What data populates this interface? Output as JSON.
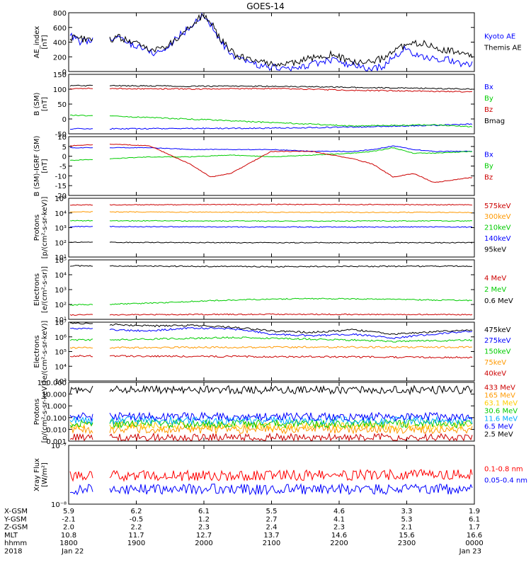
{
  "title": "GOES-14",
  "chart_data": [
    {
      "type": "line",
      "ylabel": [
        "AE_index",
        "[nT]"
      ],
      "yscale": "linear",
      "ylim": [
        0,
        800
      ],
      "yticks": [
        "0",
        "200",
        "400",
        "600",
        "800"
      ],
      "series": [
        {
          "name": "Kyoto AE",
          "color": "#0000ff",
          "x": [
            0,
            0.03,
            0.06,
            0.09,
            0.12,
            0.15,
            0.18,
            0.21,
            0.24,
            0.27,
            0.3,
            0.33,
            0.34,
            0.35,
            0.37,
            0.39,
            0.41,
            0.44,
            0.47,
            0.5,
            0.53,
            0.56,
            0.59,
            0.62,
            0.65,
            0.68,
            0.71,
            0.74,
            0.77,
            0.8,
            0.83,
            0.86,
            0.89,
            0.92,
            0.95,
            0.98,
            1.0
          ],
          "y": [
            500,
            400,
            430,
            380,
            470,
            380,
            330,
            250,
            300,
            480,
            600,
            780,
            700,
            650,
            430,
            300,
            170,
            150,
            80,
            60,
            40,
            30,
            90,
            120,
            170,
            90,
            80,
            20,
            60,
            180,
            320,
            200,
            170,
            180,
            140,
            90,
            110
          ]
        },
        {
          "name": "Themis AE",
          "color": "#000000",
          "x": [
            0,
            0.03,
            0.06,
            0.09,
            0.12,
            0.15,
            0.18,
            0.21,
            0.24,
            0.27,
            0.3,
            0.33,
            0.34,
            0.35,
            0.37,
            0.39,
            0.41,
            0.44,
            0.47,
            0.5,
            0.53,
            0.56,
            0.59,
            0.62,
            0.65,
            0.68,
            0.71,
            0.74,
            0.77,
            0.8,
            0.83,
            0.86,
            0.89,
            0.92,
            0.95,
            0.98,
            1.0
          ],
          "y": [
            470,
            440,
            450,
            400,
            470,
            410,
            350,
            300,
            330,
            470,
            620,
            760,
            720,
            680,
            470,
            340,
            220,
            180,
            130,
            110,
            100,
            120,
            170,
            210,
            230,
            170,
            120,
            120,
            170,
            280,
            350,
            380,
            370,
            300,
            270,
            230,
            200
          ]
        }
      ]
    },
    {
      "type": "line",
      "ylabel": [
        "B (SM)",
        "[nT]"
      ],
      "yscale": "linear",
      "ylim": [
        -60,
        150
      ],
      "yticks": [
        "-50",
        "0",
        "50",
        "100",
        "150"
      ],
      "series": [
        {
          "name": "Bx",
          "color": "#0000ff",
          "x": [
            0,
            0.1,
            0.3,
            0.5,
            0.7,
            0.9,
            1.0
          ],
          "y": [
            -42,
            -42,
            -41,
            -40,
            -36,
            -30,
            -25
          ]
        },
        {
          "name": "By",
          "color": "#00cc00",
          "x": [
            0,
            0.1,
            0.3,
            0.5,
            0.7,
            0.9,
            1.0
          ],
          "y": [
            5,
            3,
            -8,
            -20,
            -32,
            -28,
            -35
          ]
        },
        {
          "name": "Bz",
          "color": "#cc0000",
          "x": [
            0,
            0.1,
            0.3,
            0.5,
            0.7,
            0.9,
            1.0
          ],
          "y": [
            100,
            100,
            98,
            100,
            94,
            90,
            88
          ]
        },
        {
          "name": "Bmag",
          "color": "#000000",
          "x": [
            0,
            0.1,
            0.3,
            0.5,
            0.7,
            0.9,
            1.0
          ],
          "y": [
            110,
            110,
            108,
            108,
            104,
            100,
            98
          ]
        }
      ]
    },
    {
      "type": "line",
      "ylabel": [
        "B (SM)-IGRF (SM)",
        "[nT]"
      ],
      "yscale": "linear",
      "ylim": [
        -22,
        10
      ],
      "yticks": [
        "-20",
        "-15",
        "-10",
        "-5",
        "0",
        "5",
        "10"
      ],
      "series": [
        {
          "name": "Bx",
          "color": "#0000ff",
          "x": [
            0,
            0.1,
            0.2,
            0.3,
            0.4,
            0.5,
            0.6,
            0.7,
            0.75,
            0.8,
            0.85,
            0.9,
            1.0
          ],
          "y": [
            4,
            4,
            4,
            3,
            3,
            3,
            2,
            2,
            3,
            5,
            3,
            2,
            2
          ]
        },
        {
          "name": "By",
          "color": "#00cc00",
          "x": [
            0,
            0.1,
            0.2,
            0.3,
            0.4,
            0.5,
            0.6,
            0.7,
            0.75,
            0.8,
            0.85,
            0.9,
            1.0
          ],
          "y": [
            -3,
            -2,
            -1,
            -1,
            0,
            -1,
            0,
            1,
            2,
            4,
            1,
            1,
            2
          ]
        },
        {
          "name": "Bz",
          "color": "#cc0000",
          "x": [
            0,
            0.1,
            0.2,
            0.3,
            0.35,
            0.4,
            0.5,
            0.6,
            0.7,
            0.75,
            0.8,
            0.85,
            0.9,
            1.0
          ],
          "y": [
            5,
            6,
            5,
            -5,
            -12,
            -10,
            2,
            2,
            -2,
            -5,
            -12,
            -10,
            -15,
            -12
          ]
        }
      ]
    },
    {
      "type": "line",
      "ylabel": [
        "Protons",
        "[p/(cm²-s-sr-keV)]"
      ],
      "yscale": "log",
      "ylim": [
        10,
        100000
      ],
      "yticks": [
        "10¹",
        "10²",
        "10³",
        "10⁴",
        "10⁵"
      ],
      "series": [
        {
          "name": "575keV",
          "color": "#cc0000",
          "x": [
            0,
            0.5,
            1
          ],
          "y": [
            35000,
            38000,
            36000
          ]
        },
        {
          "name": "300keV",
          "color": "#ff9900",
          "x": [
            0,
            0.5,
            1
          ],
          "y": [
            12000,
            11000,
            11000
          ]
        },
        {
          "name": "210keV",
          "color": "#00cc00",
          "x": [
            0,
            0.5,
            1
          ],
          "y": [
            3000,
            2800,
            2900
          ]
        },
        {
          "name": "140keV",
          "color": "#0000ff",
          "x": [
            0,
            0.5,
            1
          ],
          "y": [
            1200,
            1100,
            1100
          ]
        },
        {
          "name": "95keV",
          "color": "#000000",
          "x": [
            0,
            0.5,
            1
          ],
          "y": [
            100,
            95,
            95
          ]
        }
      ]
    },
    {
      "type": "line",
      "ylabel": [
        "Electrons",
        "[e/(cm²-s-sr)]"
      ],
      "yscale": "log",
      "ylim": [
        10,
        100000
      ],
      "yticks": [
        "10¹",
        "10²",
        "10³",
        "10⁴",
        "10⁵"
      ],
      "series": [
        {
          "name": "4 MeV",
          "color": "#cc0000",
          "x": [
            0,
            0.5,
            1
          ],
          "y": [
            20,
            22,
            21
          ]
        },
        {
          "name": "2 MeV",
          "color": "#00cc00",
          "x": [
            0,
            0.2,
            0.4,
            0.6,
            0.8,
            1
          ],
          "y": [
            90,
            120,
            200,
            250,
            220,
            180
          ]
        },
        {
          "name": "0.6 MeV",
          "color": "#000000",
          "x": [
            0,
            0.5,
            1
          ],
          "y": [
            40000,
            35000,
            38000
          ]
        }
      ]
    },
    {
      "type": "line",
      "ylabel": [
        "Electrons",
        "[e/(cm²-s-sr-keV)]"
      ],
      "yscale": "log",
      "ylim": [
        1000,
        10000000
      ],
      "yticks": [
        "10³",
        "10⁴",
        "10⁵",
        "10⁶",
        "10⁷"
      ],
      "series": [
        {
          "name": "475keV",
          "color": "#000000",
          "x": [
            0,
            0.1,
            0.2,
            0.3,
            0.4,
            0.5,
            0.6,
            0.7,
            0.8,
            0.9,
            1
          ],
          "y": [
            9000000,
            7000000,
            5500000,
            6000000,
            4500000,
            2500000,
            2000000,
            3000000,
            1500000,
            2200000,
            3000000
          ]
        },
        {
          "name": "275keV",
          "color": "#0000ff",
          "x": [
            0,
            0.1,
            0.2,
            0.3,
            0.4,
            0.5,
            0.6,
            0.7,
            0.8,
            0.9,
            1
          ],
          "y": [
            4000000,
            3000000,
            2500000,
            4000000,
            3500000,
            1500000,
            1200000,
            1500000,
            800000,
            1500000,
            2500000
          ]
        },
        {
          "name": "150keV",
          "color": "#00cc00",
          "x": [
            0,
            0.2,
            0.4,
            0.6,
            0.8,
            1
          ],
          "y": [
            600000,
            700000,
            900000,
            700000,
            500000,
            600000
          ]
        },
        {
          "name": "75keV",
          "color": "#ff9900",
          "x": [
            0,
            0.5,
            1
          ],
          "y": [
            180000,
            200000,
            200000
          ]
        },
        {
          "name": "40keV",
          "color": "#cc0000",
          "x": [
            0,
            0.5,
            1
          ],
          "y": [
            50000,
            45000,
            40000
          ]
        }
      ]
    },
    {
      "type": "line",
      "ylabel": [
        "Protons",
        "[p/(cm²-s-sr-keV)]"
      ],
      "yscale": "log",
      "ylim": [
        0.001,
        100
      ],
      "yticks": [
        "0.001",
        "0.010",
        "0.100",
        "1.000",
        "10.000",
        "100.000"
      ],
      "series": [
        {
          "name": "433 MeV",
          "color": "#cc0000",
          "x": [
            0,
            1
          ],
          "y": [
            0.002,
            0.002
          ]
        },
        {
          "name": "165 MeV",
          "color": "#ff9900",
          "x": [
            0,
            1
          ],
          "y": [
            0.01,
            0.01
          ]
        },
        {
          "name": "63.1 MeV",
          "color": "#ffcc00",
          "x": [
            0,
            1
          ],
          "y": [
            0.02,
            0.02
          ]
        },
        {
          "name": "30.6 MeV",
          "color": "#00cc00",
          "x": [
            0,
            1
          ],
          "y": [
            0.03,
            0.03
          ]
        },
        {
          "name": "11.6 MeV",
          "color": "#00aaff",
          "x": [
            0,
            1
          ],
          "y": [
            0.06,
            0.06
          ]
        },
        {
          "name": "6.5 MeV",
          "color": "#0000ff",
          "x": [
            0,
            1
          ],
          "y": [
            0.12,
            0.12
          ]
        },
        {
          "name": "2.5 MeV",
          "color": "#000000",
          "x": [
            0,
            1
          ],
          "y": [
            25,
            22
          ]
        }
      ]
    },
    {
      "type": "line",
      "ylabel": [
        "Xray Flux",
        "[W/m²]"
      ],
      "yscale": "log",
      "ylim": [
        1e-08,
        1e-07
      ],
      "yticks": [
        "10⁻⁸",
        "10⁻⁷"
      ],
      "series": [
        {
          "name": "0.1-0.8 nm",
          "color": "#ff0000",
          "x": [
            0,
            1
          ],
          "y": [
            3e-08,
            3.2e-08
          ]
        },
        {
          "name": "0.05-0.4 nm",
          "color": "#0000ff",
          "x": [
            0,
            1
          ],
          "y": [
            1.8e-08,
            1.8e-08
          ]
        }
      ]
    }
  ],
  "orbit_table": {
    "row_labels": [
      "X-GSM",
      "Y-GSM",
      "Z-GSM",
      "MLT",
      "hhmm",
      "2018"
    ],
    "columns": [
      [
        "5.9",
        "-2.1",
        "2.0",
        "10.8",
        "1800",
        "Jan 22"
      ],
      [
        "6.2",
        "-0.5",
        "2.2",
        "11.7",
        "1900",
        ""
      ],
      [
        "6.1",
        "1.2",
        "2.3",
        "12.7",
        "2000",
        ""
      ],
      [
        "5.5",
        "2.7",
        "2.4",
        "13.7",
        "2100",
        ""
      ],
      [
        "4.6",
        "4.1",
        "2.3",
        "14.6",
        "2200",
        ""
      ],
      [
        "3.3",
        "5.3",
        "2.1",
        "15.6",
        "2300",
        ""
      ],
      [
        "1.9",
        "6.1",
        "1.7",
        "16.6",
        "0000",
        "Jan 23"
      ]
    ]
  }
}
